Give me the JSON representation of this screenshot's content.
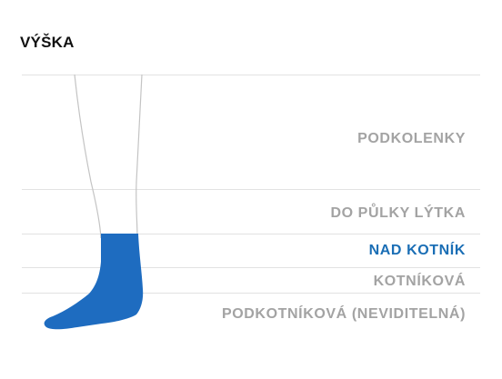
{
  "title": "VÝŠKA",
  "colors": {
    "selected": "#1a6eb5",
    "muted": "#a3a3a3",
    "sock_fill": "#1e6cc0",
    "leg_outline": "#c4c4c4",
    "guide_line": "#e2e2e2"
  },
  "options": [
    {
      "label": "PODKOLENKY",
      "selected": false
    },
    {
      "label": "DO PŮLKY LÝTKA",
      "selected": false
    },
    {
      "label": "NAD KOTNÍK",
      "selected": true
    },
    {
      "label": "KOTNÍKOVÁ",
      "selected": false
    },
    {
      "label": "PODKOTNÍKOVÁ (NEVIDITELNÁ)",
      "selected": false
    }
  ]
}
